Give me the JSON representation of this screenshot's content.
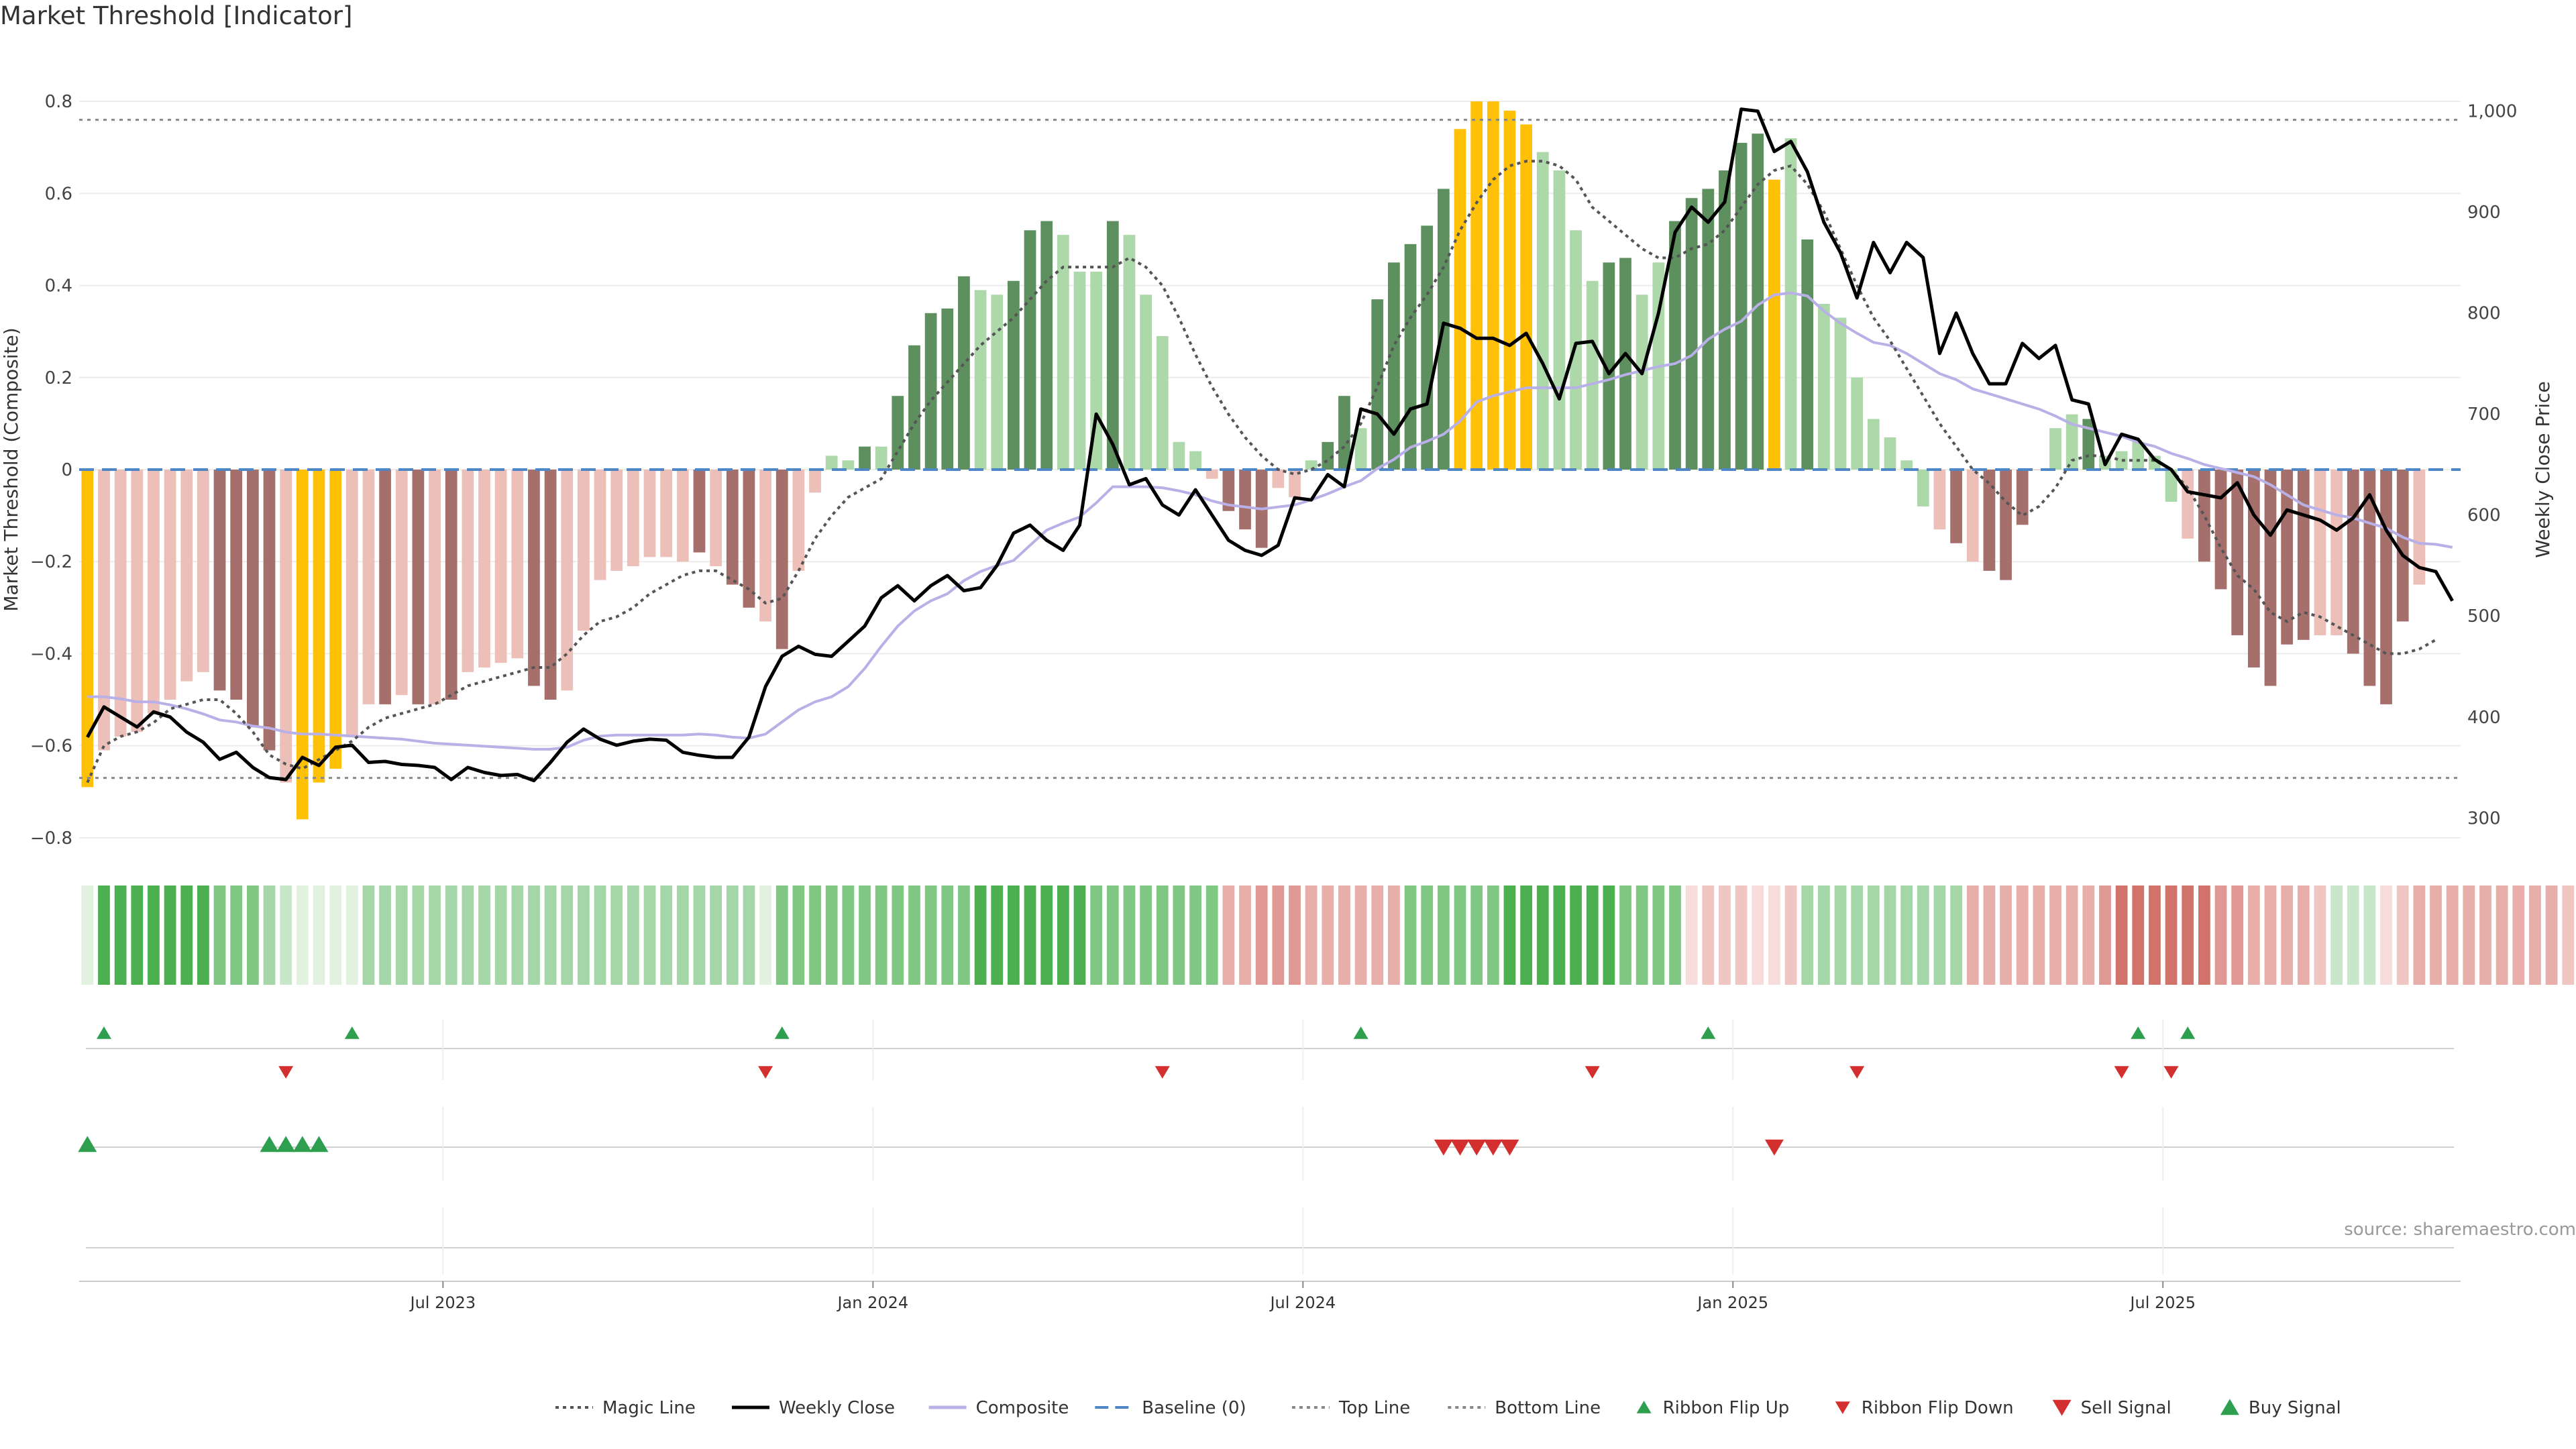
{
  "title": "Market Threshold [Indicator]",
  "source": "source: sharemaestro.com",
  "colors": {
    "strong_green": "#5e8f5e",
    "light_green": "#acd8aa",
    "strong_red": "#a56f6c",
    "light_red": "#ecbfb9",
    "gold": "#ffc107",
    "weekly_close": "#000000",
    "magic_line": "#555555",
    "composite": "#b8b0e6",
    "baseline": "#4f86c6",
    "threshold_lines": "#888888",
    "signal_up": "#2e9e4f",
    "signal_down": "#d32f2f"
  },
  "chart_data": {
    "type": "bar",
    "n_weeks": 144,
    "left_axis": {
      "label": "Market Threshold (Composite)",
      "ylim": [
        -0.86,
        0.86
      ],
      "ticks": [
        "0.8",
        "0.6",
        "0.4",
        "0.2",
        "0",
        "−0.2",
        "−0.4",
        "−0.6",
        "−0.8"
      ]
    },
    "right_axis": {
      "label": "Weekly Close Price",
      "ylim": [
        253,
        1037
      ],
      "ticks": [
        "1,000",
        "900",
        "800",
        "700",
        "600",
        "500",
        "400",
        "300"
      ]
    },
    "x_ticks": [
      {
        "label": "Jul 2023",
        "week": 22
      },
      {
        "label": "Jan 2024",
        "week": 48
      },
      {
        "label": "Jul 2024",
        "week": 74
      },
      {
        "label": "Jan 2025",
        "week": 100
      },
      {
        "label": "Jul 2025",
        "week": 126
      }
    ],
    "top_line": 0.76,
    "bottom_line": -0.67,
    "baseline": 0,
    "bars": [
      -0.69,
      -0.61,
      -0.58,
      -0.57,
      -0.53,
      -0.5,
      -0.46,
      -0.44,
      -0.48,
      -0.5,
      -0.56,
      -0.61,
      -0.68,
      -0.76,
      -0.68,
      -0.65,
      -0.58,
      -0.51,
      -0.51,
      -0.49,
      -0.51,
      -0.51,
      -0.5,
      -0.44,
      -0.43,
      -0.42,
      -0.41,
      -0.47,
      -0.5,
      -0.48,
      -0.35,
      -0.24,
      -0.22,
      -0.21,
      -0.19,
      -0.19,
      -0.2,
      -0.18,
      -0.21,
      -0.25,
      -0.3,
      -0.33,
      -0.39,
      -0.22,
      -0.05,
      0.03,
      0.02,
      0.05,
      0.05,
      0.16,
      0.27,
      0.34,
      0.35,
      0.42,
      0.39,
      0.38,
      0.41,
      0.52,
      0.54,
      0.51,
      0.43,
      0.43,
      0.54,
      0.51,
      0.38,
      0.29,
      0.06,
      0.04,
      -0.02,
      -0.09,
      -0.13,
      -0.17,
      -0.04,
      -0.06,
      0.02,
      0.06,
      0.16,
      0.09,
      0.37,
      0.45,
      0.49,
      0.53,
      0.61,
      0.74,
      0.8,
      0.8,
      0.78,
      0.75,
      0.69,
      0.65,
      0.52,
      0.41,
      0.45,
      0.46,
      0.38,
      0.45,
      0.54,
      0.59,
      0.61,
      0.65,
      0.71,
      0.73,
      0.63,
      0.72,
      0.5,
      0.36,
      0.33,
      0.2,
      0.11,
      0.07,
      0.02,
      -0.08,
      -0.13,
      -0.16,
      -0.2,
      -0.22,
      -0.24,
      -0.12,
      0.0,
      0.09,
      0.12,
      0.11,
      0.03,
      0.04,
      0.06,
      0.03,
      -0.07,
      -0.15,
      -0.2,
      -0.26,
      -0.36,
      -0.43,
      -0.47,
      -0.38,
      -0.37,
      -0.36,
      -0.36,
      -0.4,
      -0.47,
      -0.51,
      -0.33,
      -0.25
    ],
    "bar_colors": [
      "gold",
      "light_red",
      "light_red",
      "light_red",
      "light_red",
      "light_red",
      "light_red",
      "light_red",
      "strong_red",
      "strong_red",
      "strong_red",
      "strong_red",
      "light_red",
      "gold",
      "gold",
      "gold",
      "light_red",
      "light_red",
      "strong_red",
      "light_red",
      "strong_red",
      "light_red",
      "strong_red",
      "light_red",
      "light_red",
      "light_red",
      "light_red",
      "strong_red",
      "strong_red",
      "light_red",
      "light_red",
      "light_red",
      "light_red",
      "light_red",
      "light_red",
      "light_red",
      "light_red",
      "strong_red",
      "light_red",
      "strong_red",
      "strong_red",
      "light_red",
      "strong_red",
      "light_red",
      "light_red",
      "light_green",
      "light_green",
      "strong_green",
      "light_green",
      "strong_green",
      "strong_green",
      "strong_green",
      "strong_green",
      "strong_green",
      "light_green",
      "light_green",
      "strong_green",
      "strong_green",
      "strong_green",
      "light_green",
      "light_green",
      "light_green",
      "strong_green",
      "light_green",
      "light_green",
      "light_green",
      "light_green",
      "light_green",
      "light_red",
      "strong_red",
      "strong_red",
      "strong_red",
      "light_red",
      "light_red",
      "light_green",
      "strong_green",
      "strong_green",
      "light_green",
      "strong_green",
      "strong_green",
      "strong_green",
      "strong_green",
      "strong_green",
      "gold",
      "gold",
      "gold",
      "gold",
      "gold",
      "light_green",
      "light_green",
      "light_green",
      "light_green",
      "strong_green",
      "strong_green",
      "light_green",
      "light_green",
      "strong_green",
      "strong_green",
      "strong_green",
      "strong_green",
      "strong_green",
      "strong_green",
      "gold",
      "light_green",
      "strong_green",
      "light_green",
      "light_green",
      "light_green",
      "light_green",
      "light_green",
      "light_green",
      "light_green",
      "light_red",
      "strong_red",
      "light_red",
      "strong_red",
      "strong_red",
      "strong_red",
      "light_red",
      "light_green",
      "light_green",
      "strong_green",
      "light_green",
      "light_green",
      "light_green",
      "light_green",
      "light_green",
      "light_red",
      "strong_red",
      "strong_red",
      "strong_red",
      "strong_red",
      "strong_red",
      "strong_red",
      "strong_red",
      "light_red",
      "light_red",
      "strong_red",
      "strong_red",
      "strong_red",
      "strong_red",
      "light_red",
      "light_red"
    ],
    "weekly_close": [
      380,
      410,
      400,
      390,
      405,
      400,
      385,
      375,
      358,
      365,
      350,
      340,
      338,
      360,
      352,
      370,
      372,
      355,
      356,
      353,
      352,
      350,
      338,
      350,
      345,
      342,
      343,
      337,
      355,
      375,
      388,
      378,
      372,
      376,
      378,
      377,
      365,
      362,
      360,
      360,
      380,
      430,
      460,
      470,
      462,
      460,
      475,
      490,
      518,
      530,
      515,
      530,
      540,
      525,
      528,
      550,
      582,
      590,
      575,
      565,
      590,
      700,
      670,
      630,
      636,
      610,
      600,
      625,
      600,
      575,
      565,
      560,
      570,
      617,
      615,
      640,
      628,
      705,
      700,
      680,
      705,
      710,
      790,
      785,
      775,
      775,
      768,
      780,
      750,
      715,
      770,
      772,
      740,
      760,
      740,
      800,
      880,
      905,
      890,
      910,
      1002,
      1000,
      960,
      970,
      940,
      890,
      860,
      815,
      870,
      840,
      870,
      855,
      760,
      800,
      760,
      730,
      730,
      770,
      755,
      768,
      714,
      710,
      650,
      680,
      675,
      655,
      645,
      623,
      620,
      617,
      632,
      600,
      580,
      605,
      600,
      595,
      585,
      597,
      620,
      585,
      560,
      548,
      544,
      515
    ],
    "magic_line": [
      -0.68,
      -0.6,
      -0.58,
      -0.57,
      -0.55,
      -0.52,
      -0.51,
      -0.5,
      -0.5,
      -0.53,
      -0.57,
      -0.62,
      -0.64,
      -0.65,
      -0.63,
      -0.61,
      -0.59,
      -0.56,
      -0.54,
      -0.53,
      -0.52,
      -0.51,
      -0.49,
      -0.47,
      -0.46,
      -0.45,
      -0.44,
      -0.43,
      -0.43,
      -0.4,
      -0.36,
      -0.33,
      -0.32,
      -0.3,
      -0.27,
      -0.25,
      -0.23,
      -0.22,
      -0.22,
      -0.24,
      -0.26,
      -0.29,
      -0.28,
      -0.22,
      -0.15,
      -0.1,
      -0.06,
      -0.04,
      -0.02,
      0.04,
      0.1,
      0.15,
      0.19,
      0.23,
      0.27,
      0.3,
      0.33,
      0.37,
      0.41,
      0.44,
      0.44,
      0.44,
      0.44,
      0.46,
      0.44,
      0.4,
      0.33,
      0.25,
      0.18,
      0.12,
      0.07,
      0.03,
      0.0,
      -0.01,
      0.0,
      0.02,
      0.05,
      0.1,
      0.18,
      0.27,
      0.33,
      0.38,
      0.44,
      0.52,
      0.58,
      0.63,
      0.66,
      0.67,
      0.67,
      0.66,
      0.63,
      0.57,
      0.54,
      0.51,
      0.48,
      0.46,
      0.46,
      0.48,
      0.49,
      0.52,
      0.57,
      0.62,
      0.65,
      0.66,
      0.62,
      0.56,
      0.48,
      0.4,
      0.33,
      0.28,
      0.22,
      0.16,
      0.1,
      0.05,
      0.0,
      -0.03,
      -0.07,
      -0.1,
      -0.08,
      -0.04,
      0.02,
      0.03,
      0.03,
      0.02,
      0.02,
      0.02,
      0.0,
      -0.04,
      -0.1,
      -0.17,
      -0.23,
      -0.26,
      -0.31,
      -0.33,
      -0.31,
      -0.32,
      -0.34,
      -0.36,
      -0.38,
      -0.4,
      -0.4,
      -0.39,
      -0.37
    ],
    "composite_line": [
      420,
      420,
      418,
      415,
      415,
      412,
      408,
      403,
      397,
      395,
      391,
      389,
      385,
      383,
      383,
      382,
      381,
      380,
      379,
      378,
      376,
      374,
      373,
      372,
      371,
      370,
      369,
      368,
      368,
      370,
      377,
      381,
      382,
      382,
      382,
      382,
      382,
      383,
      382,
      380,
      379,
      383,
      395,
      407,
      415,
      420,
      430,
      448,
      470,
      490,
      505,
      515,
      522,
      535,
      544,
      550,
      555,
      570,
      585,
      592,
      598,
      612,
      628,
      628,
      628,
      627,
      624,
      620,
      614,
      610,
      608,
      606,
      608,
      610,
      615,
      621,
      628,
      634,
      646,
      655,
      667,
      673,
      680,
      693,
      712,
      718,
      722,
      726,
      726,
      726,
      726,
      730,
      734,
      739,
      743,
      747,
      750,
      758,
      774,
      784,
      792,
      808,
      818,
      820,
      817,
      802,
      790,
      780,
      771,
      768,
      760,
      750,
      740,
      734,
      725,
      720,
      715,
      710,
      705,
      698,
      690,
      686,
      682,
      678,
      672,
      668,
      661,
      656,
      650,
      646,
      642,
      638,
      630,
      620,
      610,
      605,
      600,
      597,
      592,
      587,
      578,
      572,
      571,
      568
    ],
    "ribbon": [
      1,
      5,
      5,
      5,
      5,
      5,
      5,
      5,
      4,
      4,
      4,
      3,
      2,
      1,
      1,
      1,
      1,
      3,
      3,
      3,
      3,
      3,
      3,
      3,
      3,
      3,
      3,
      3,
      3,
      3,
      3,
      3,
      3,
      3,
      3,
      3,
      3,
      3,
      3,
      3,
      3,
      1,
      4,
      4,
      4,
      4,
      4,
      4,
      4,
      4,
      4,
      4,
      4,
      4,
      5,
      5,
      5,
      5,
      5,
      5,
      5,
      4,
      4,
      4,
      4,
      4,
      4,
      4,
      4,
      -3,
      -3,
      -4,
      -4,
      -4,
      -3,
      -3,
      -3,
      -3,
      -3,
      -3,
      4,
      4,
      4,
      4,
      4,
      4,
      5,
      5,
      5,
      5,
      5,
      5,
      5,
      4,
      4,
      4,
      4,
      -1,
      -2,
      -2,
      -2,
      -1,
      -1,
      -2,
      3,
      3,
      3,
      3,
      3,
      3,
      3,
      3,
      3,
      3,
      -3,
      -3,
      -3,
      -3,
      -3,
      -3,
      -3,
      -3,
      -4,
      -5,
      -5,
      -5,
      -5,
      -5,
      -5,
      -4,
      -4,
      -3,
      -3,
      -3,
      -3,
      -2,
      2,
      2,
      2,
      -1,
      -2,
      -3,
      -3,
      -3,
      -3,
      -3,
      -3,
      -3,
      -3,
      -3,
      -2,
      -2,
      -2
    ],
    "ribbon_flip_up_weeks": [
      1,
      16,
      42,
      77,
      98,
      124,
      127
    ],
    "ribbon_flip_down_weeks": [
      12,
      41,
      65,
      91,
      107,
      123,
      126
    ],
    "buy_signal_weeks": [
      0,
      11,
      12,
      13,
      14
    ],
    "sell_signal_weeks": [
      82,
      83,
      84,
      85,
      86,
      102
    ],
    "legend": [
      {
        "label": "Magic Line",
        "kind": "dotted",
        "color": "magic_line"
      },
      {
        "label": "Weekly Close",
        "kind": "solid",
        "color": "weekly_close"
      },
      {
        "label": "Composite",
        "kind": "solid",
        "color": "composite"
      },
      {
        "label": "Baseline (0)",
        "kind": "dashed",
        "color": "baseline"
      },
      {
        "label": "Top Line",
        "kind": "dotted",
        "color": "threshold_lines"
      },
      {
        "label": "Bottom Line",
        "kind": "dotted",
        "color": "threshold_lines"
      },
      {
        "label": "Ribbon Flip Up",
        "kind": "up-small",
        "color": "signal_up"
      },
      {
        "label": "Ribbon Flip Down",
        "kind": "down-small",
        "color": "signal_down"
      },
      {
        "label": "Sell Signal",
        "kind": "down-big",
        "color": "signal_down"
      },
      {
        "label": "Buy Signal",
        "kind": "up-big",
        "color": "signal_up"
      }
    ]
  }
}
